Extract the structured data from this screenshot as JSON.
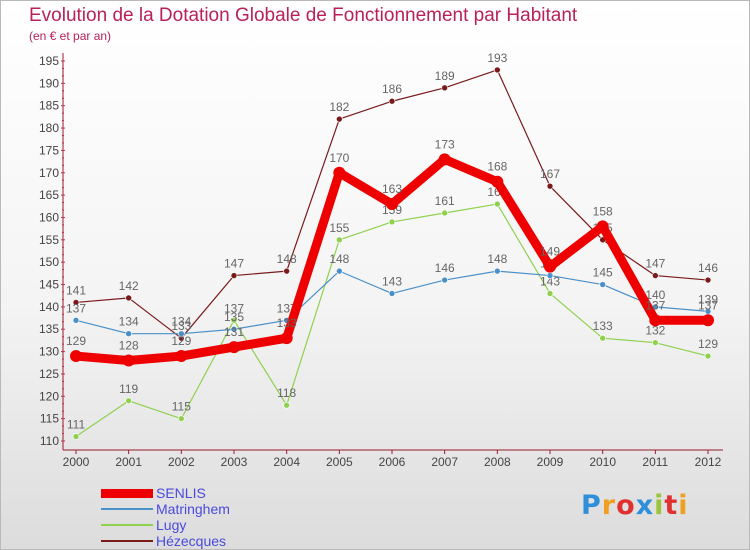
{
  "title": "Evolution de la Dotation Globale de Fonctionnement par Habitant",
  "subtitle": "(en € et par an)",
  "logo": {
    "text": "Proxiti",
    "letter_colors": [
      "#2f8fd8",
      "#f0a020",
      "#e03030",
      "#2f8fd8",
      "#9ac43a",
      "#e03030",
      "#f0a020"
    ]
  },
  "chart_data": {
    "type": "line",
    "x": [
      "2000",
      "2001",
      "2002",
      "2003",
      "2004",
      "2005",
      "2006",
      "2007",
      "2008",
      "2009",
      "2010",
      "2011",
      "2012"
    ],
    "ylim": [
      110,
      195
    ],
    "yticks": [
      110,
      115,
      120,
      125,
      130,
      135,
      140,
      145,
      150,
      155,
      160,
      165,
      170,
      175,
      180,
      185,
      190,
      195
    ],
    "grid": false,
    "legend_position": "bottom-left",
    "series": [
      {
        "name": "Hézecques",
        "color": "#7a1a1a",
        "values": [
          141,
          142,
          133,
          147,
          148,
          182,
          186,
          189,
          193,
          167,
          155,
          147,
          146
        ]
      },
      {
        "name": "Lugy",
        "color": "#8fd14f",
        "values": [
          111,
          119,
          115,
          137,
          118,
          155,
          159,
          161,
          163,
          143,
          133,
          132,
          129
        ]
      },
      {
        "name": "Matringhem",
        "color": "#4a90c8",
        "values": [
          137,
          134,
          134,
          135,
          137,
          148,
          143,
          146,
          148,
          147,
          145,
          140,
          139
        ]
      },
      {
        "name": "SENLIS",
        "color": "#ee0000",
        "values": [
          129,
          128,
          129,
          131,
          133,
          170,
          163,
          173,
          168,
          149,
          158,
          137,
          137
        ]
      }
    ],
    "legend_order": [
      "SENLIS",
      "Matringhem",
      "Lugy",
      "Hézecques"
    ]
  }
}
